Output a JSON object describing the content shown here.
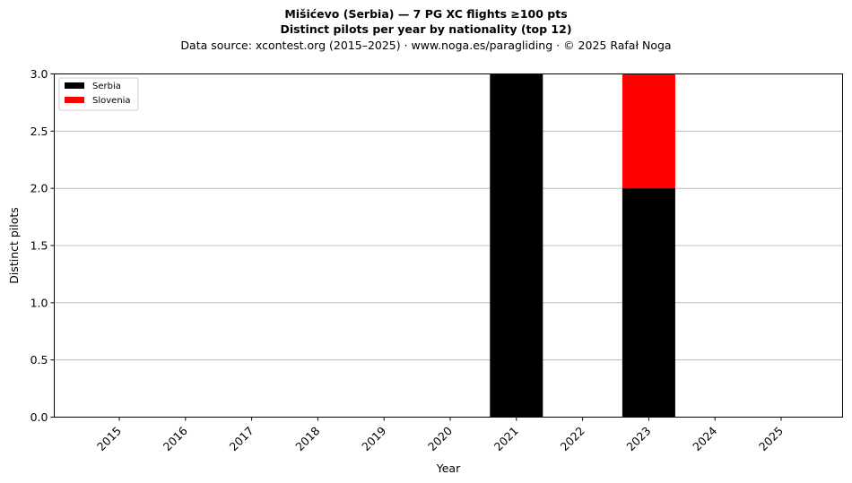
{
  "header": {
    "title": "Mišićevo (Serbia)  —  7 PG XC flights ≥100 pts",
    "subtitle": "Distinct pilots per year by nationality (top 12)",
    "source": "Data source: xcontest.org (2015–2025)  ·  www.noga.es/paragliding  ·  © 2025 Rafał Noga"
  },
  "chart_data": {
    "type": "bar",
    "stacked": true,
    "categories": [
      "2015",
      "2016",
      "2017",
      "2018",
      "2019",
      "2020",
      "2021",
      "2022",
      "2023",
      "2024",
      "2025"
    ],
    "series": [
      {
        "name": "Serbia",
        "color": "#000000",
        "values": [
          0,
          0,
          0,
          0,
          0,
          0,
          3,
          0,
          2,
          0,
          0
        ]
      },
      {
        "name": "Slovenia",
        "color": "#ff0000",
        "values": [
          0,
          0,
          0,
          0,
          0,
          0,
          0,
          0,
          1,
          0,
          0
        ]
      }
    ],
    "xlabel": "Year",
    "ylabel": "Distinct pilots",
    "ylim": [
      0,
      3
    ],
    "yticks": [
      "0.0",
      "0.5",
      "1.0",
      "1.5",
      "2.0",
      "2.5",
      "3.0"
    ],
    "grid": "horizontal",
    "legend_position": "top-left"
  }
}
